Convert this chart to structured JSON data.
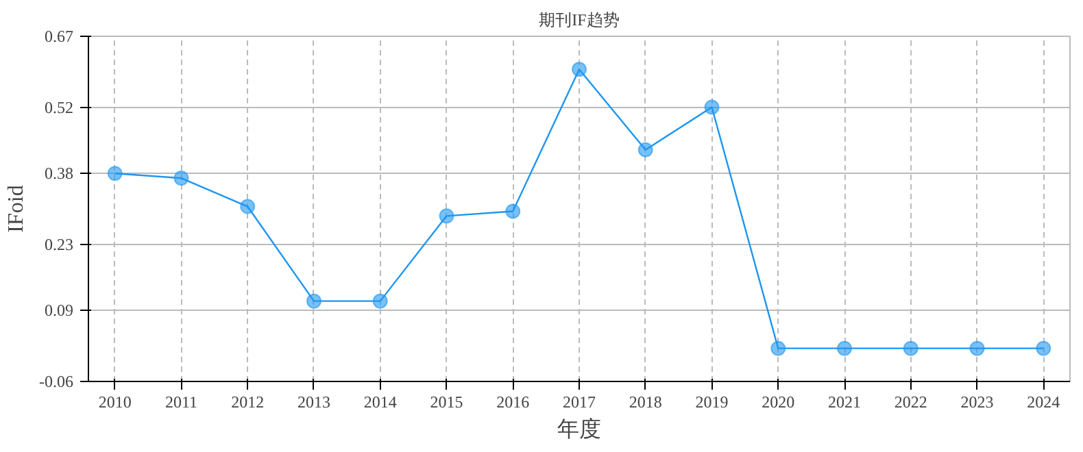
{
  "chart_data": {
    "type": "line",
    "title": "期刊IF趋势",
    "xlabel": "年度",
    "ylabel": "IFoid",
    "x": [
      2010,
      2011,
      2012,
      2013,
      2014,
      2015,
      2016,
      2017,
      2018,
      2019,
      2020,
      2021,
      2022,
      2023,
      2024
    ],
    "series": [
      {
        "color": "#1e96f0",
        "values": [
          0.38,
          0.37,
          0.31,
          0.11,
          0.11,
          0.29,
          0.3,
          0.6,
          0.43,
          0.52,
          0.01,
          0.01,
          0.01,
          0.01,
          0.01
        ]
      }
    ],
    "xlim": [
      2009.6,
      2024.4
    ],
    "xticks": [
      2010,
      2011,
      2012,
      2013,
      2014,
      2015,
      2016,
      2017,
      2018,
      2019,
      2020,
      2021,
      2022,
      2023,
      2024
    ],
    "ylim": [
      -0.06,
      0.67
    ],
    "yticks": [
      -0.06,
      0.09,
      0.23,
      0.38,
      0.52,
      0.67
    ],
    "grid": true,
    "marker": "circle",
    "line_style": "solid"
  }
}
